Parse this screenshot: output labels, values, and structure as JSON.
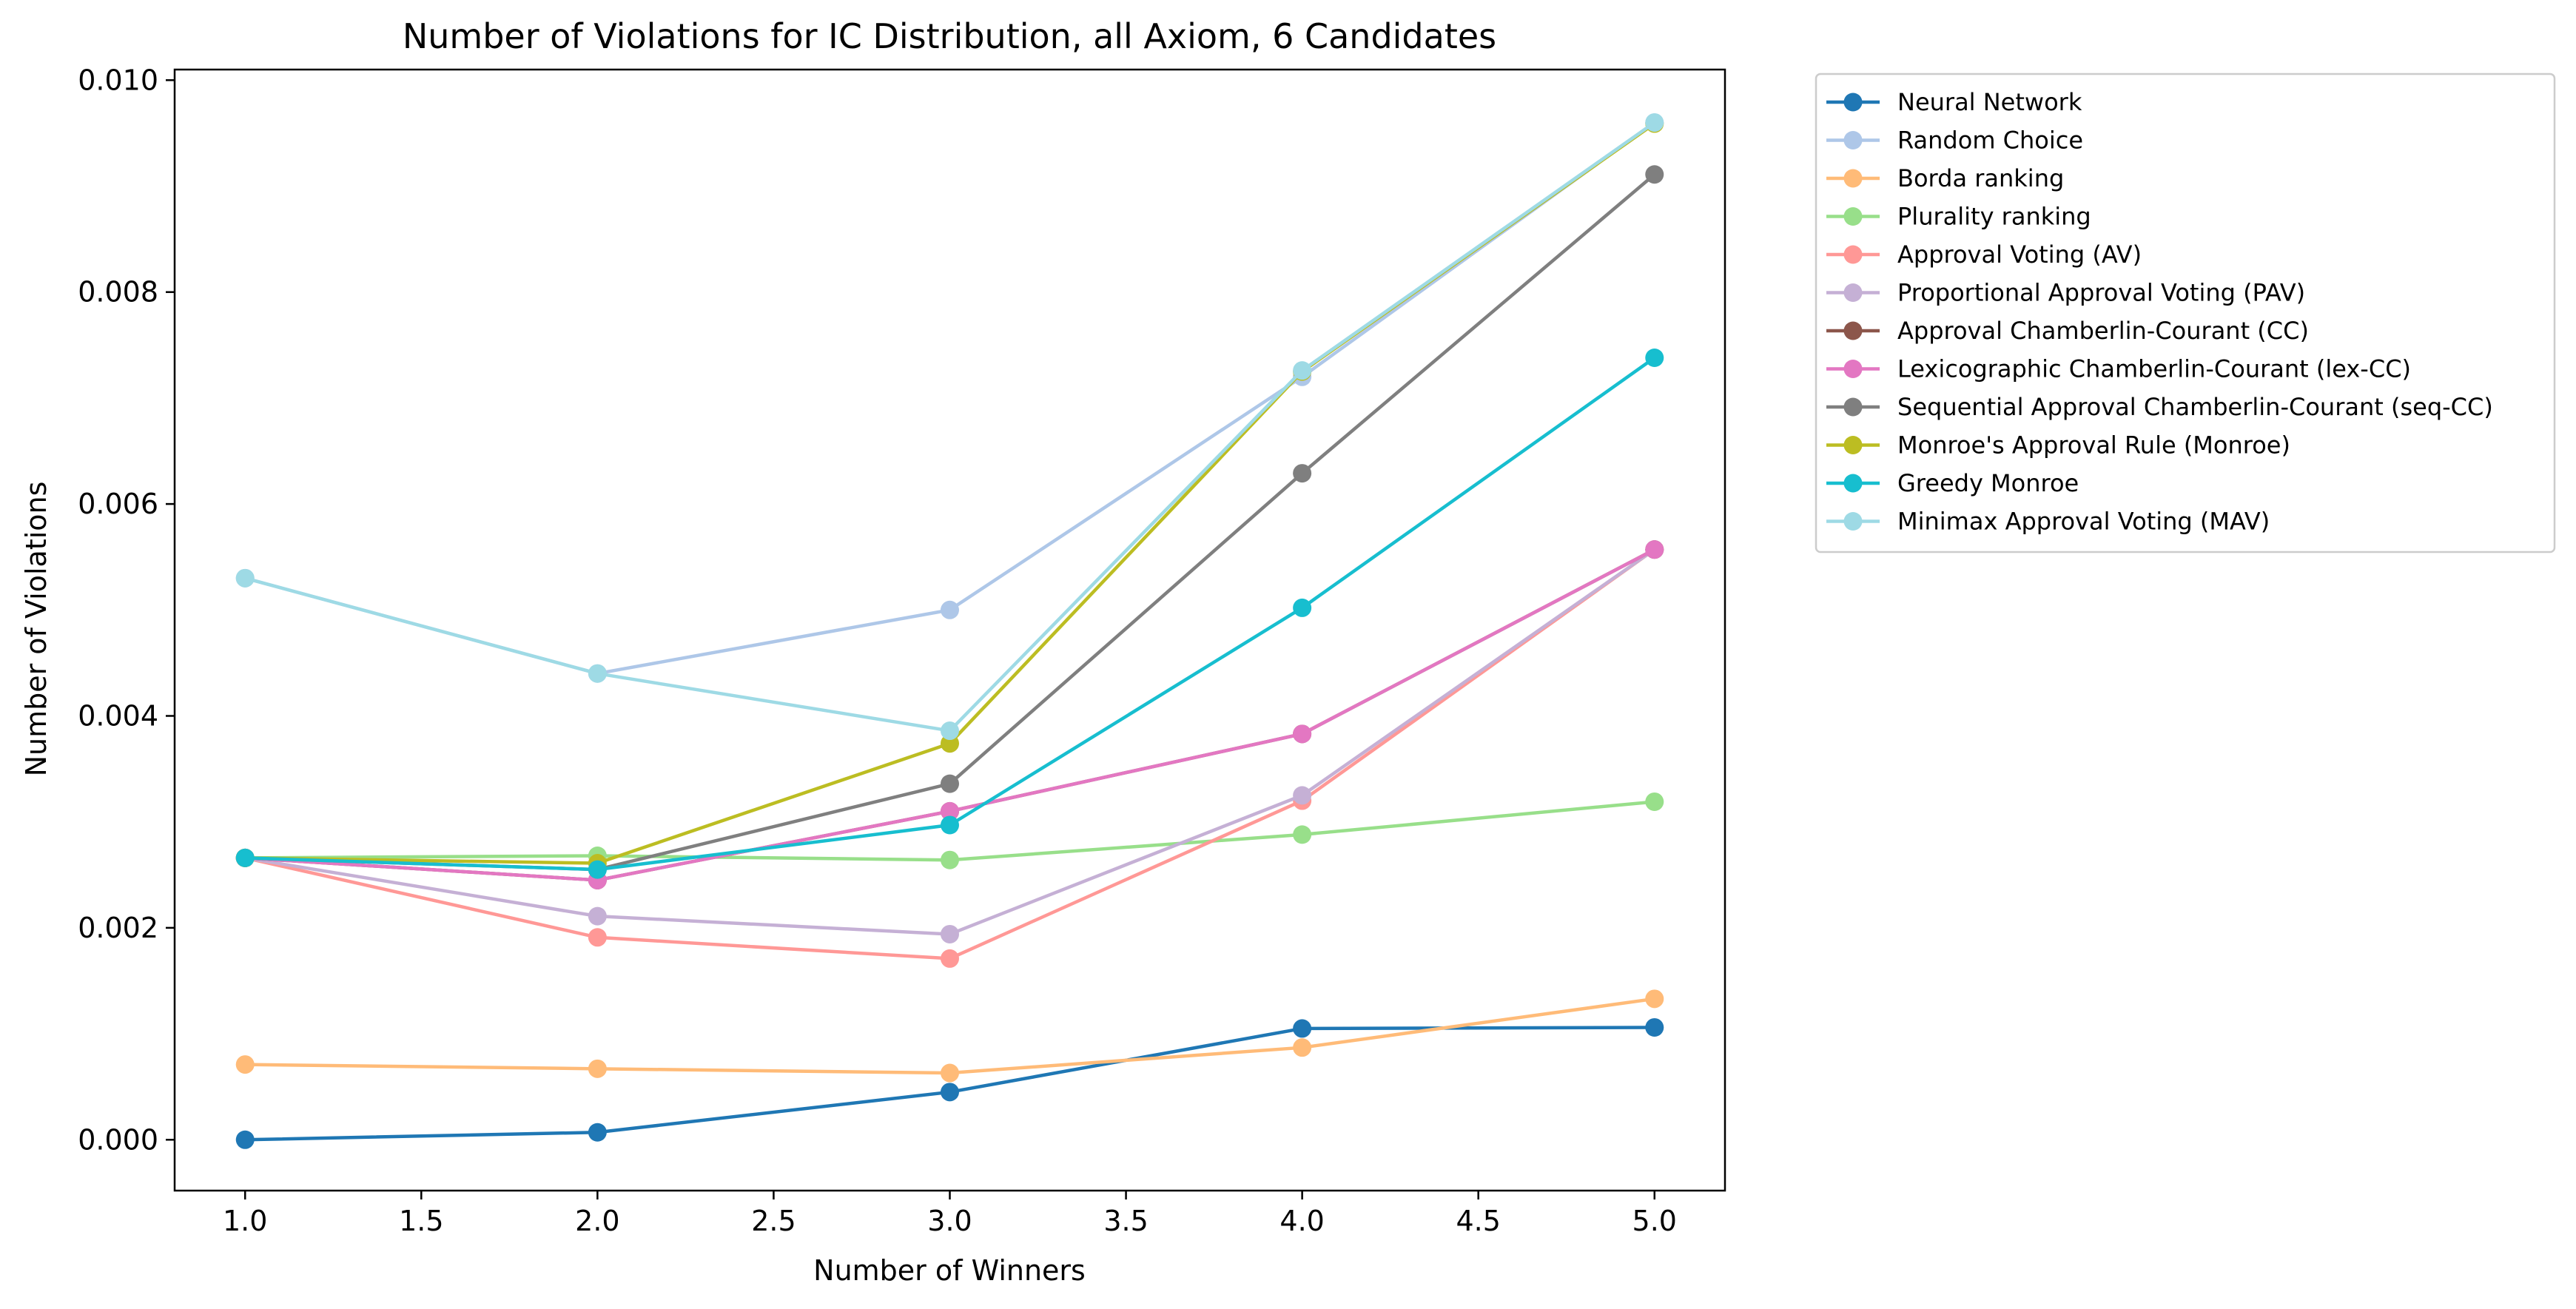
{
  "chart_data": {
    "type": "line",
    "title": "Number of Violations for IC Distribution, all Axiom, 6 Candidates",
    "xlabel": "Number of Winners",
    "ylabel": "Number of Violations",
    "xlim": [
      0.8,
      5.2
    ],
    "ylim": [
      -0.00048,
      0.0101
    ],
    "xticks": [
      "1.0",
      "1.5",
      "2.0",
      "2.5",
      "3.0",
      "3.5",
      "4.0",
      "4.5",
      "5.0"
    ],
    "yticks": [
      "0.000",
      "0.002",
      "0.004",
      "0.006",
      "0.008",
      "0.010"
    ],
    "grid": false,
    "legend_position": "outside-upper-right",
    "x": [
      1,
      2,
      3,
      4,
      5
    ],
    "series": [
      {
        "name": "Neural Network",
        "color": "#1f77b4",
        "values": [
          0.0,
          7e-05,
          0.00045,
          0.00105,
          0.00106
        ]
      },
      {
        "name": "Random Choice",
        "color": "#aec7e8",
        "values": [
          0.0053,
          0.0044,
          0.005,
          0.0072,
          0.0096
        ]
      },
      {
        "name": "Borda ranking",
        "color": "#ffbb78",
        "values": [
          0.00071,
          0.00067,
          0.00063,
          0.00087,
          0.00133
        ]
      },
      {
        "name": "Plurality ranking",
        "color": "#98df8a",
        "values": [
          0.00266,
          0.00268,
          0.00264,
          0.00288,
          0.00319
        ]
      },
      {
        "name": "Approval Voting (AV)",
        "color": "#ff9896",
        "values": [
          0.00266,
          0.00191,
          0.00171,
          0.0032,
          0.00557
        ]
      },
      {
        "name": "Proportional Approval Voting (PAV)",
        "color": "#c5b0d5",
        "values": [
          0.00266,
          0.00211,
          0.00194,
          0.00325,
          0.00557
        ]
      },
      {
        "name": "Approval Chamberlin-Courant (CC)",
        "color": "#8c564b",
        "values": [
          0.00266,
          0.00245,
          0.0031,
          0.00383,
          0.00557
        ]
      },
      {
        "name": "Lexicographic Chamberlin-Courant (lex-CC)",
        "color": "#e377c2",
        "values": [
          0.00266,
          0.00245,
          0.0031,
          0.00383,
          0.00557
        ]
      },
      {
        "name": "Sequential Approval Chamberlin-Courant (seq-CC)",
        "color": "#7f7f7f",
        "values": [
          0.00266,
          0.00255,
          0.00336,
          0.00629,
          0.00911
        ]
      },
      {
        "name": "Monroe's Approval Rule (Monroe)",
        "color": "#bcbd22",
        "values": [
          0.00266,
          0.00261,
          0.00374,
          0.00725,
          0.00959
        ]
      },
      {
        "name": "Greedy Monroe",
        "color": "#17becf",
        "values": [
          0.00266,
          0.00255,
          0.00297,
          0.00502,
          0.00738
        ]
      },
      {
        "name": "Minimax Approval Voting (MAV)",
        "color": "#9edae5",
        "values": [
          0.0053,
          0.0044,
          0.00386,
          0.00726,
          0.0096
        ]
      }
    ]
  }
}
